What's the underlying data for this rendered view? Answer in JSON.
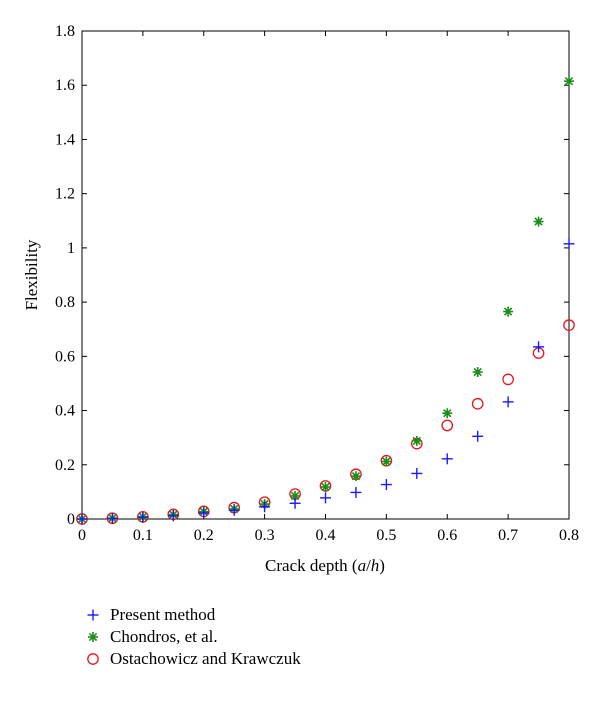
{
  "chart_data": {
    "type": "scatter",
    "xlabel": "Crack depth (a/h)",
    "xlabel_parts": {
      "prefix": "Crack depth (",
      "a": "a",
      "slash": "/",
      "h": "h",
      "suffix": ")"
    },
    "ylabel": "Flexibility",
    "xlim": [
      0,
      0.8
    ],
    "ylim": [
      0,
      1.8
    ],
    "xticks": [
      "0",
      "0.1",
      "0.2",
      "0.3",
      "0.4",
      "0.5",
      "0.6",
      "0.7",
      "0.8"
    ],
    "yticks": [
      "0",
      "0.2",
      "0.4",
      "0.6",
      "0.8",
      "1",
      "1.2",
      "1.4",
      "1.6",
      "1.8"
    ],
    "grid": false,
    "legend_position": "below",
    "series": [
      {
        "name": "Present method",
        "marker": "plus",
        "color": "#1a1aff",
        "x": [
          0,
          0.05,
          0.1,
          0.15,
          0.2,
          0.25,
          0.3,
          0.35,
          0.4,
          0.45,
          0.5,
          0.55,
          0.6,
          0.65,
          0.7,
          0.75,
          0.8
        ],
        "y": [
          0,
          0.002,
          0.006,
          0.012,
          0.022,
          0.032,
          0.045,
          0.058,
          0.078,
          0.098,
          0.127,
          0.168,
          0.222,
          0.305,
          0.432,
          0.635,
          1.015
        ]
      },
      {
        "name": "Chondros, et al.",
        "marker": "star",
        "color": "#1a8c1a",
        "x": [
          0,
          0.05,
          0.1,
          0.15,
          0.2,
          0.25,
          0.3,
          0.35,
          0.4,
          0.45,
          0.5,
          0.55,
          0.6,
          0.65,
          0.7,
          0.75,
          0.8
        ],
        "y": [
          0,
          0.003,
          0.008,
          0.016,
          0.027,
          0.037,
          0.055,
          0.085,
          0.118,
          0.158,
          0.212,
          0.288,
          0.39,
          0.542,
          0.765,
          1.097,
          1.615
        ]
      },
      {
        "name": "Ostachowicz and Krawczuk",
        "marker": "circle",
        "color": "#e8141a",
        "x": [
          0,
          0.05,
          0.1,
          0.15,
          0.2,
          0.25,
          0.3,
          0.35,
          0.4,
          0.45,
          0.5,
          0.55,
          0.6,
          0.65,
          0.7,
          0.75,
          0.8
        ],
        "y": [
          0,
          0.003,
          0.008,
          0.017,
          0.028,
          0.042,
          0.062,
          0.092,
          0.122,
          0.165,
          0.215,
          0.278,
          0.345,
          0.425,
          0.515,
          0.612,
          0.715
        ]
      }
    ]
  }
}
